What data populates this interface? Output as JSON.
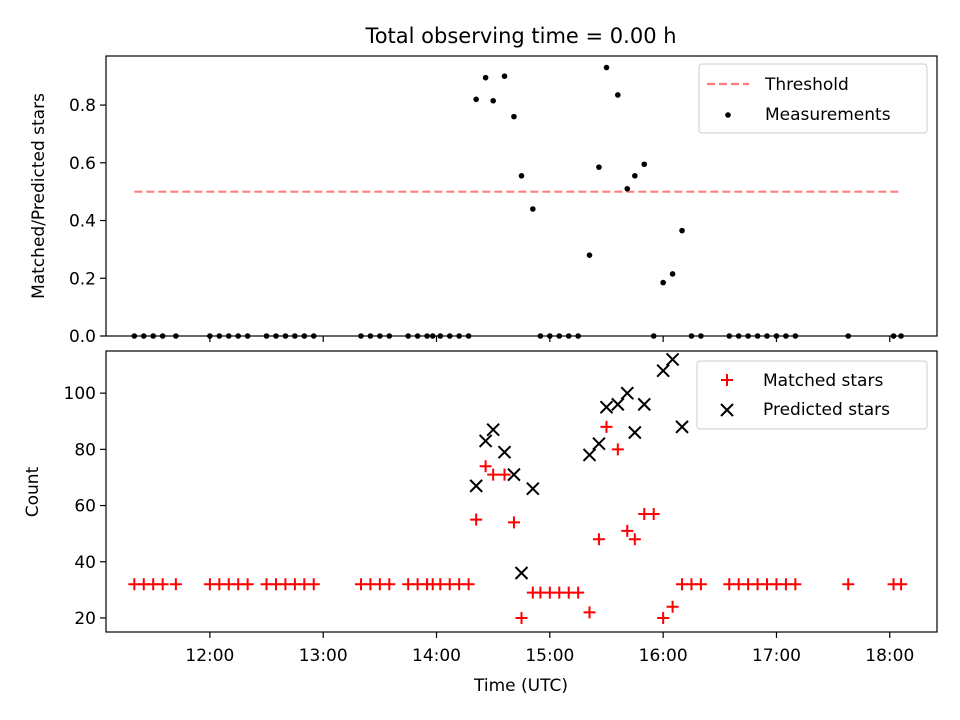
{
  "chart_data": [
    {
      "type": "scatter",
      "title": "Total observing time = 0.00 h",
      "ylabel": "Matched/Predicted stars",
      "xlabel": "",
      "xlim": [
        "11:05",
        "18:25"
      ],
      "ylim": [
        0,
        0.97
      ],
      "yticks": [
        {
          "v": 0.0,
          "label": "0.0"
        },
        {
          "v": 0.2,
          "label": "0.2"
        },
        {
          "v": 0.4,
          "label": "0.4"
        },
        {
          "v": 0.6,
          "label": "0.6"
        },
        {
          "v": 0.8,
          "label": "0.8"
        }
      ],
      "legend_position": "top-right",
      "threshold": {
        "name": "Threshold",
        "value": 0.5,
        "x_range": [
          "11:20",
          "18:05"
        ],
        "color": "#ff7f7f",
        "style": "dashed"
      },
      "series": [
        {
          "name": "Measurements",
          "color": "#000000",
          "marker": "dot",
          "points": [
            [
              "11:20",
              0
            ],
            [
              "11:25",
              0
            ],
            [
              "11:30",
              0
            ],
            [
              "11:35",
              0
            ],
            [
              "11:42",
              0
            ],
            [
              "12:00",
              0
            ],
            [
              "12:05",
              0
            ],
            [
              "12:10",
              0
            ],
            [
              "12:15",
              0
            ],
            [
              "12:20",
              0
            ],
            [
              "12:30",
              0
            ],
            [
              "12:35",
              0
            ],
            [
              "12:40",
              0
            ],
            [
              "12:45",
              0
            ],
            [
              "12:50",
              0
            ],
            [
              "12:55",
              0
            ],
            [
              "13:20",
              0
            ],
            [
              "13:25",
              0
            ],
            [
              "13:30",
              0
            ],
            [
              "13:35",
              0
            ],
            [
              "13:45",
              0
            ],
            [
              "13:50",
              0
            ],
            [
              "13:55",
              0
            ],
            [
              "13:58",
              0
            ],
            [
              "14:02",
              0
            ],
            [
              "14:07",
              0
            ],
            [
              "14:12",
              0
            ],
            [
              "14:17",
              0
            ],
            [
              "14:21",
              0.82
            ],
            [
              "14:26",
              0.895
            ],
            [
              "14:30",
              0.815
            ],
            [
              "14:36",
              0.9
            ],
            [
              "14:41",
              0.76
            ],
            [
              "14:45",
              0.555
            ],
            [
              "14:51",
              0.44
            ],
            [
              "14:55",
              0
            ],
            [
              "15:00",
              0
            ],
            [
              "15:05",
              0
            ],
            [
              "15:10",
              0
            ],
            [
              "15:15",
              0
            ],
            [
              "15:21",
              0.28
            ],
            [
              "15:26",
              0.585
            ],
            [
              "15:30",
              0.93
            ],
            [
              "15:36",
              0.835
            ],
            [
              "15:41",
              0.51
            ],
            [
              "15:45",
              0.555
            ],
            [
              "15:50",
              0.595
            ],
            [
              "15:55",
              0
            ],
            [
              "16:00",
              0.185
            ],
            [
              "16:05",
              0.215
            ],
            [
              "16:10",
              0.365
            ],
            [
              "16:15",
              0
            ],
            [
              "16:20",
              0
            ],
            [
              "16:35",
              0
            ],
            [
              "16:40",
              0
            ],
            [
              "16:45",
              0
            ],
            [
              "16:50",
              0
            ],
            [
              "16:55",
              0
            ],
            [
              "17:00",
              0
            ],
            [
              "17:05",
              0
            ],
            [
              "17:10",
              0
            ],
            [
              "17:38",
              0
            ],
            [
              "18:02",
              0
            ],
            [
              "18:06",
              0
            ]
          ]
        }
      ]
    },
    {
      "type": "scatter",
      "title": "",
      "xlabel": "Time (UTC)",
      "ylabel": "Count",
      "xlim": [
        "11:05",
        "18:25"
      ],
      "ylim": [
        15,
        115
      ],
      "xticks": [
        "12:00",
        "13:00",
        "14:00",
        "15:00",
        "16:00",
        "17:00",
        "18:00"
      ],
      "yticks": [
        {
          "v": 20,
          "label": "20"
        },
        {
          "v": 40,
          "label": "40"
        },
        {
          "v": 60,
          "label": "60"
        },
        {
          "v": 80,
          "label": "80"
        },
        {
          "v": 100,
          "label": "100"
        }
      ],
      "legend_position": "top-right",
      "series": [
        {
          "name": "Matched stars",
          "color": "#ff0000",
          "marker": "plus",
          "points": [
            [
              "11:20",
              32
            ],
            [
              "11:25",
              32
            ],
            [
              "11:30",
              32
            ],
            [
              "11:35",
              32
            ],
            [
              "11:42",
              32
            ],
            [
              "12:00",
              32
            ],
            [
              "12:05",
              32
            ],
            [
              "12:10",
              32
            ],
            [
              "12:15",
              32
            ],
            [
              "12:20",
              32
            ],
            [
              "12:30",
              32
            ],
            [
              "12:35",
              32
            ],
            [
              "12:40",
              32
            ],
            [
              "12:45",
              32
            ],
            [
              "12:50",
              32
            ],
            [
              "12:55",
              32
            ],
            [
              "13:20",
              32
            ],
            [
              "13:25",
              32
            ],
            [
              "13:30",
              32
            ],
            [
              "13:35",
              32
            ],
            [
              "13:45",
              32
            ],
            [
              "13:50",
              32
            ],
            [
              "13:55",
              32
            ],
            [
              "13:58",
              32
            ],
            [
              "14:02",
              32
            ],
            [
              "14:07",
              32
            ],
            [
              "14:12",
              32
            ],
            [
              "14:17",
              32
            ],
            [
              "14:21",
              55
            ],
            [
              "14:26",
              74
            ],
            [
              "14:30",
              71
            ],
            [
              "14:36",
              71
            ],
            [
              "14:41",
              54
            ],
            [
              "14:45",
              20
            ],
            [
              "14:51",
              29
            ],
            [
              "14:55",
              29
            ],
            [
              "15:00",
              29
            ],
            [
              "15:05",
              29
            ],
            [
              "15:10",
              29
            ],
            [
              "15:15",
              29
            ],
            [
              "15:21",
              22
            ],
            [
              "15:26",
              48
            ],
            [
              "15:30",
              88
            ],
            [
              "15:36",
              80
            ],
            [
              "15:41",
              51
            ],
            [
              "15:45",
              48
            ],
            [
              "15:50",
              57
            ],
            [
              "15:55",
              57
            ],
            [
              "16:00",
              20
            ],
            [
              "16:05",
              24
            ],
            [
              "16:10",
              32
            ],
            [
              "16:15",
              32
            ],
            [
              "16:20",
              32
            ],
            [
              "16:35",
              32
            ],
            [
              "16:40",
              32
            ],
            [
              "16:45",
              32
            ],
            [
              "16:50",
              32
            ],
            [
              "16:55",
              32
            ],
            [
              "17:00",
              32
            ],
            [
              "17:05",
              32
            ],
            [
              "17:10",
              32
            ],
            [
              "17:38",
              32
            ],
            [
              "18:02",
              32
            ],
            [
              "18:06",
              32
            ]
          ]
        },
        {
          "name": "Predicted stars",
          "color": "#000000",
          "marker": "x",
          "points": [
            [
              "14:21",
              67
            ],
            [
              "14:26",
              83
            ],
            [
              "14:30",
              87
            ],
            [
              "14:36",
              79
            ],
            [
              "14:41",
              71
            ],
            [
              "14:45",
              36
            ],
            [
              "14:51",
              66
            ],
            [
              "15:21",
              78
            ],
            [
              "15:26",
              82
            ],
            [
              "15:30",
              95
            ],
            [
              "15:36",
              96
            ],
            [
              "15:41",
              100
            ],
            [
              "15:45",
              86
            ],
            [
              "15:50",
              96
            ],
            [
              "16:00",
              108
            ],
            [
              "16:05",
              112
            ],
            [
              "16:10",
              88
            ]
          ]
        }
      ]
    }
  ]
}
